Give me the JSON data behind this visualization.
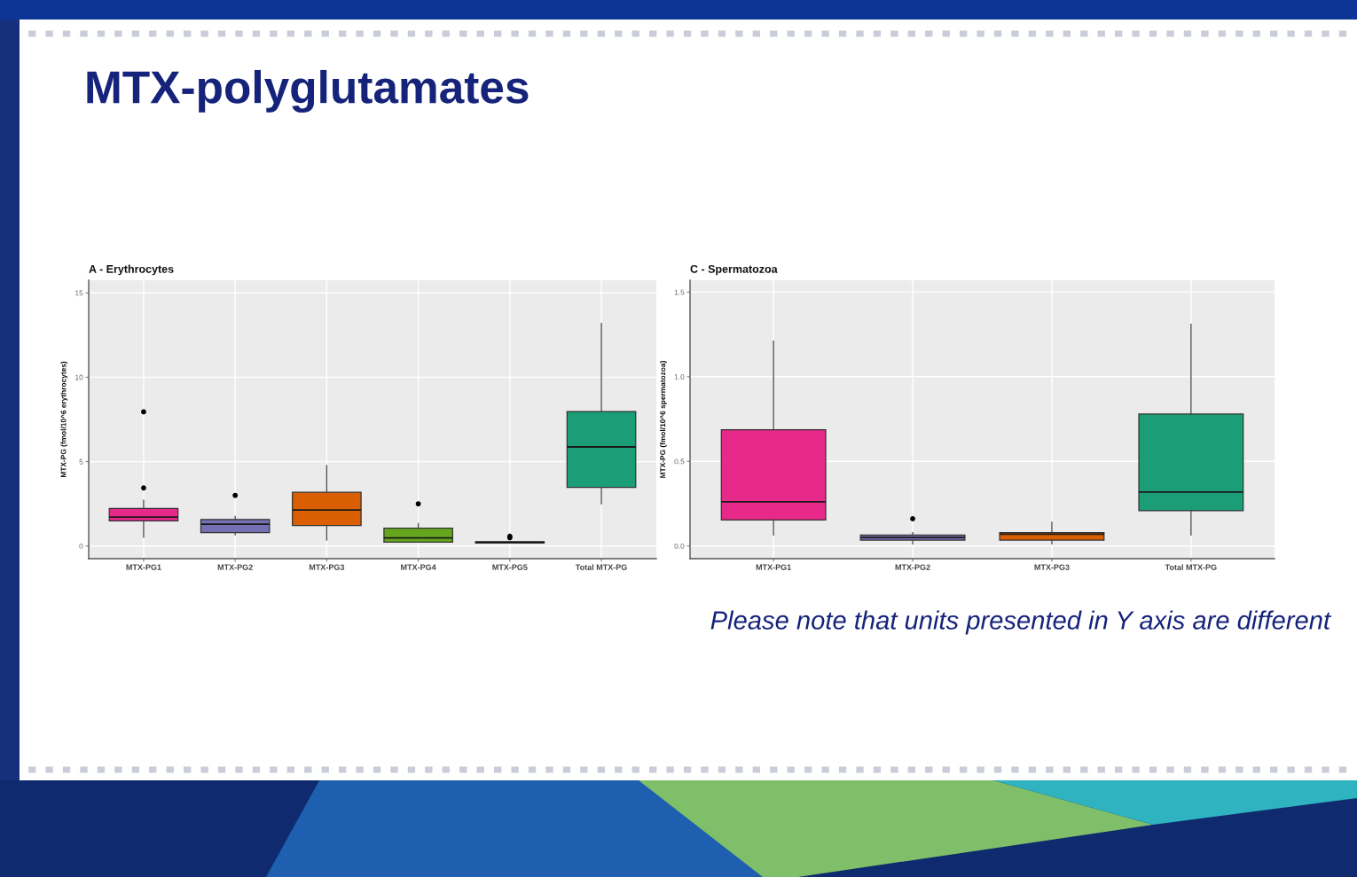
{
  "chart_data": [
    {
      "type": "box",
      "title": "A - Erythrocytes",
      "ylabel": "MTX-PG (fmol/10^6 erythrocytes)",
      "categories": [
        "MTX-PG1",
        "MTX-PG2",
        "MTX-PG3",
        "MTX-PG4",
        "MTX-PG5",
        "Total MTX-PG"
      ],
      "colors": [
        "#e7298a",
        "#7570b3",
        "#d95f02",
        "#66a61e",
        "#e6ab02",
        "#1b9e77"
      ],
      "boxes": [
        {
          "low": 0.52,
          "q1": 1.49,
          "median": 1.71,
          "q3": 2.22,
          "high": 2.71,
          "outliers": [
            3.44,
            7.95
          ]
        },
        {
          "low": 0.66,
          "q1": 0.79,
          "median": 1.29,
          "q3": 1.57,
          "high": 1.75,
          "outliers": [
            3.0
          ]
        },
        {
          "low": 0.35,
          "q1": 1.21,
          "median": 2.13,
          "q3": 3.18,
          "high": 4.77
        },
        {
          "low": 0.23,
          "q1": 0.23,
          "median": 0.48,
          "q3": 1.05,
          "high": 1.33,
          "outliers": [
            2.5
          ]
        },
        {
          "low": 0.17,
          "q1": 0.17,
          "median": 0.22,
          "q3": 0.26,
          "high": 0.26,
          "outliers": [
            0.49,
            0.58
          ]
        },
        {
          "low": 2.5,
          "q1": 3.48,
          "median": 5.87,
          "q3": 7.97,
          "high": 13.2
        }
      ],
      "ylim": [
        -0.75,
        15.75
      ],
      "yticks": [
        0,
        5,
        10,
        15
      ],
      "grid": true,
      "annotations": [
        "MTX-polyglutamates"
      ]
    },
    {
      "type": "box",
      "title": "C - Spermatozoa",
      "ylabel": "MTX-PG (fmol/10^6 spermatozoa)",
      "categories": [
        "MTX-PG1",
        "MTX-PG2",
        "MTX-PG3",
        "Total MTX-PG"
      ],
      "colors": [
        "#e7298a",
        "#7570b3",
        "#d95f02",
        "#1b9e77"
      ],
      "boxes": [
        {
          "low": 0.065,
          "q1": 0.154,
          "median": 0.261,
          "q3": 0.686,
          "high": 1.21
        },
        {
          "low": 0.012,
          "q1": 0.035,
          "median": 0.05,
          "q3": 0.065,
          "high": 0.079,
          "outliers": [
            0.161
          ]
        },
        {
          "low": 0.012,
          "q1": 0.035,
          "median": 0.07,
          "q3": 0.079,
          "high": 0.14
        },
        {
          "low": 0.065,
          "q1": 0.208,
          "median": 0.319,
          "q3": 0.779,
          "high": 1.31
        }
      ],
      "ylim": [
        -0.075,
        1.57
      ],
      "yticks": [
        {
          "value": 0,
          "label": "0.0"
        },
        {
          "value": 0.5,
          "label": "0.5"
        },
        {
          "value": 1,
          "label": "1.0"
        },
        {
          "value": 1.5,
          "label": "1.5"
        }
      ],
      "grid": true,
      "annotations": [
        "Please note that units presented in Y axis are different"
      ]
    }
  ]
}
